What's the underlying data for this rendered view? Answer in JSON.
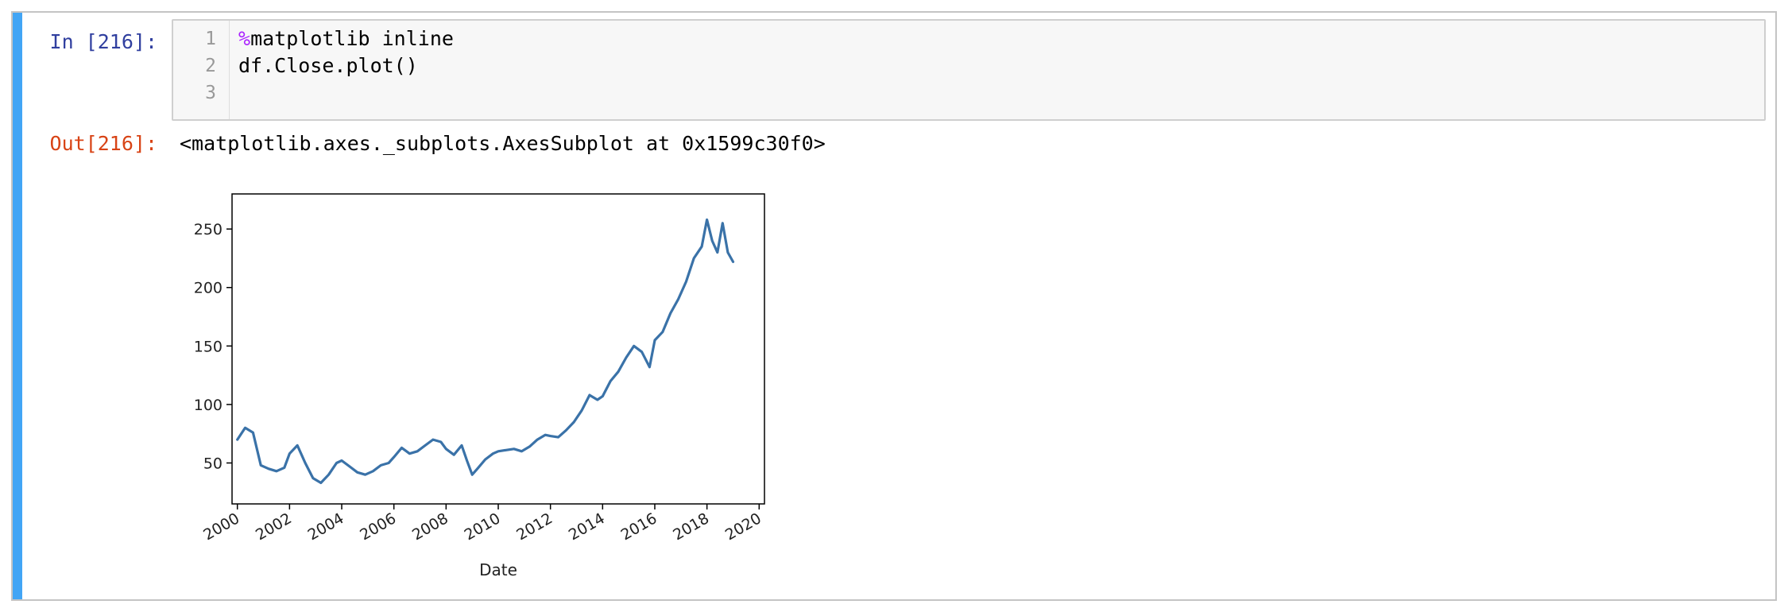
{
  "cell": {
    "in_prompt": "In [216]:",
    "out_prompt": "Out[216]:",
    "code": {
      "line_numbers": [
        "1",
        "2",
        "3"
      ],
      "line1_magic": "%",
      "line1_rest": "matplotlib inline",
      "line2": "df.Close.plot()",
      "line3": ""
    },
    "output_repr": "<matplotlib.axes._subplots.AxesSubplot at 0x1599c30f0>"
  },
  "colors": {
    "series": "#3a72a8",
    "rail": "#42a5f5",
    "in_prompt": "#303f9f",
    "out_prompt": "#d84315"
  },
  "chart_data": {
    "type": "line",
    "title": "",
    "xlabel": "Date",
    "ylabel": "",
    "xlim": [
      2000,
      2020
    ],
    "ylim": [
      15,
      280
    ],
    "x_ticks": [
      "2000",
      "2002",
      "2004",
      "2006",
      "2008",
      "2010",
      "2012",
      "2014",
      "2016",
      "2018",
      "2020"
    ],
    "y_ticks": [
      "50",
      "100",
      "150",
      "200",
      "250"
    ],
    "grid": false,
    "series": [
      {
        "name": "",
        "x": [
          2000.0,
          2000.3,
          2000.6,
          2000.9,
          2001.2,
          2001.5,
          2001.8,
          2002.0,
          2002.3,
          2002.6,
          2002.9,
          2003.2,
          2003.5,
          2003.8,
          2004.0,
          2004.3,
          2004.6,
          2004.9,
          2005.2,
          2005.5,
          2005.8,
          2006.0,
          2006.3,
          2006.6,
          2006.9,
          2007.2,
          2007.5,
          2007.8,
          2008.0,
          2008.3,
          2008.6,
          2008.8,
          2009.0,
          2009.2,
          2009.5,
          2009.8,
          2010.0,
          2010.3,
          2010.6,
          2010.9,
          2011.2,
          2011.5,
          2011.8,
          2012.0,
          2012.3,
          2012.6,
          2012.9,
          2013.2,
          2013.5,
          2013.8,
          2014.0,
          2014.3,
          2014.6,
          2014.9,
          2015.2,
          2015.5,
          2015.8,
          2016.0,
          2016.3,
          2016.6,
          2016.9,
          2017.2,
          2017.5,
          2017.8,
          2018.0,
          2018.2,
          2018.4,
          2018.6,
          2018.8,
          2019.0
        ],
        "y": [
          70,
          80,
          76,
          48,
          45,
          43,
          46,
          58,
          65,
          50,
          37,
          33,
          40,
          50,
          52,
          47,
          42,
          40,
          43,
          48,
          50,
          55,
          63,
          58,
          60,
          65,
          70,
          68,
          62,
          57,
          65,
          52,
          40,
          45,
          53,
          58,
          60,
          61,
          62,
          60,
          64,
          70,
          74,
          73,
          72,
          78,
          85,
          95,
          108,
          104,
          107,
          120,
          128,
          140,
          150,
          145,
          132,
          155,
          162,
          178,
          190,
          205,
          225,
          235,
          258,
          240,
          230,
          255,
          230,
          222
        ]
      }
    ]
  }
}
